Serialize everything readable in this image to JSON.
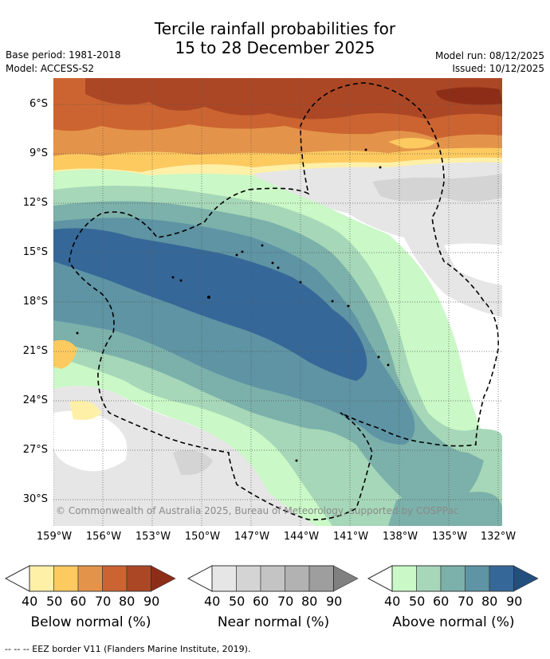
{
  "title_line1": "Tercile rainfall probabilities for",
  "title_line2": "15 to 28 December 2025",
  "base_period": "Base period: 1981-2018",
  "model": "Model: ACCESS-S2",
  "model_run": "Model run: 08/12/2025",
  "issued": "Issued: 10/12/2025",
  "copyright": "© Commonwealth of Australia 2025, Bureau of Meteorology, supported by COSPPac",
  "lat_labels": [
    "6°S",
    "9°S",
    "12°S",
    "15°S",
    "18°S",
    "21°S",
    "24°S",
    "27°S",
    "30°S"
  ],
  "lon_labels": [
    "159°W",
    "156°W",
    "153°W",
    "150°W",
    "147°W",
    "144°W",
    "141°W",
    "138°W",
    "135°W",
    "132°W"
  ],
  "legend": {
    "ticks": [
      "40",
      "50",
      "60",
      "70",
      "80",
      "90"
    ],
    "below": {
      "label": "Below normal (%)",
      "colors": [
        "#fff0a8",
        "#fdca60",
        "#e4944a",
        "#cc6431",
        "#ac4725",
        "#8e2d17"
      ]
    },
    "near": {
      "label": "Near normal (%)",
      "colors": [
        "#e6e6e6",
        "#d4d4d4",
        "#c4c4c4",
        "#b2b2b2",
        "#9e9e9e",
        "#808080"
      ]
    },
    "above": {
      "label": "Above normal (%)",
      "colors": [
        "#caf8c6",
        "#a6d7b8",
        "#7bb1aa",
        "#5e94a4",
        "#356898",
        "#234f7f"
      ]
    }
  },
  "footer": "--  --  -- EEZ border V11 (Flanders Marine Institute, 2019)."
}
